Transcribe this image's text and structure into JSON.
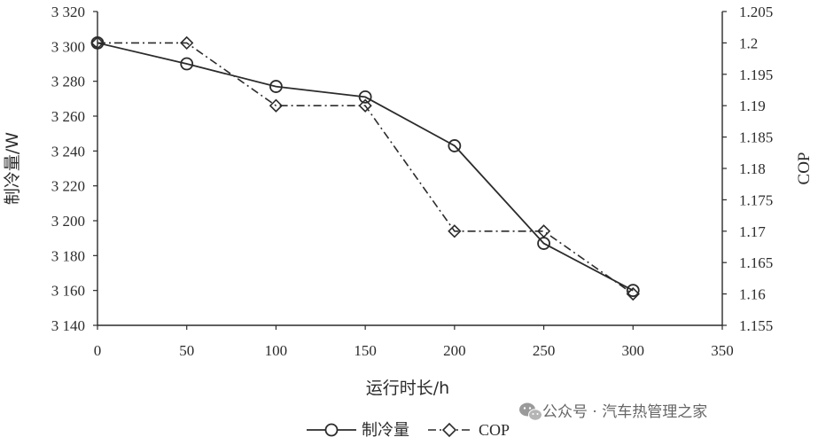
{
  "chart_data": {
    "type": "line",
    "x_axis": {
      "label": "运行时长/h",
      "min": 0,
      "max": 350,
      "ticks": [
        0,
        50,
        100,
        150,
        200,
        250,
        300,
        350
      ],
      "tick_labels": [
        "0",
        "50",
        "100",
        "150",
        "200",
        "250",
        "300",
        "350"
      ]
    },
    "y_axis_left": {
      "label": "制冷量/W",
      "min": 3140,
      "max": 3320,
      "ticks": [
        3140,
        3160,
        3180,
        3200,
        3220,
        3240,
        3260,
        3280,
        3300,
        3320
      ],
      "tick_labels": [
        "3 140",
        "3 160",
        "3 180",
        "3 200",
        "3 220",
        "3 240",
        "3 260",
        "3 280",
        "3 300",
        "3 320"
      ]
    },
    "y_axis_right": {
      "label": "COP",
      "min": 1.155,
      "max": 1.205,
      "ticks": [
        1.155,
        1.16,
        1.165,
        1.17,
        1.175,
        1.18,
        1.185,
        1.19,
        1.195,
        1.2,
        1.205
      ],
      "tick_labels": [
        "1.155",
        "1.16",
        "1.165",
        "1.17",
        "1.175",
        "1.18",
        "1.185",
        "1.19",
        "1.195",
        "1.2",
        "1.205"
      ]
    },
    "series": [
      {
        "name": "制冷量",
        "axis": "left",
        "marker": "circle",
        "line_style": "solid",
        "x": [
          0,
          50,
          100,
          150,
          200,
          250,
          300
        ],
        "y": [
          3302,
          3290,
          3277,
          3271,
          3243,
          3187,
          3160
        ]
      },
      {
        "name": "COP",
        "axis": "right",
        "marker": "diamond",
        "line_style": "dash-dot",
        "x": [
          0,
          50,
          100,
          150,
          200,
          250,
          300
        ],
        "y": [
          1.2,
          1.2,
          1.19,
          1.19,
          1.17,
          1.17,
          1.16
        ]
      }
    ],
    "legend": {
      "position": "bottom-center",
      "entries": [
        "制冷量",
        "COP"
      ]
    },
    "grid": false
  },
  "watermark": {
    "text": "公众号 · 汽车热管理之家",
    "icon": "wechat-icon"
  },
  "colors": {
    "line": "#2b2b2b",
    "text": "#2b2b2b",
    "watermark": "#666666"
  }
}
